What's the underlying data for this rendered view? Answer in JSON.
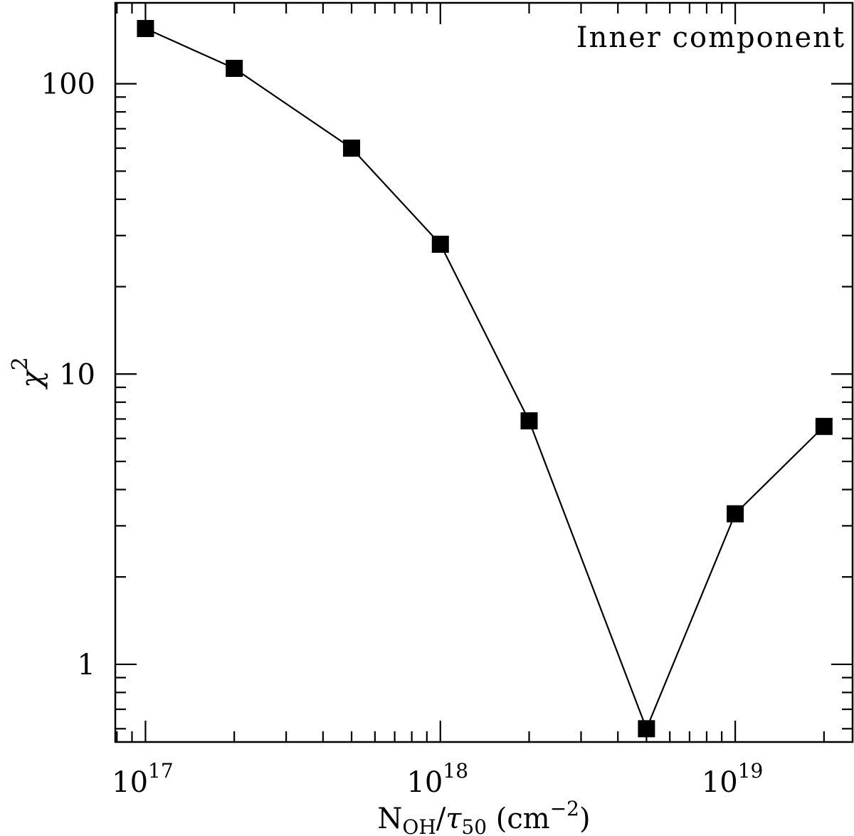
{
  "chart_data": {
    "type": "line",
    "title": "",
    "annotation": "Inner component",
    "xlabel": {
      "parts": [
        "N",
        "OH",
        "/",
        "τ",
        "50",
        " (cm",
        "−2",
        ")"
      ],
      "text": "N_OH/τ_50 (cm^-2)"
    },
    "ylabel": {
      "base": "χ",
      "sup": "2",
      "text": "χ^2"
    },
    "xscale": "log",
    "yscale": "log",
    "xlim": [
      7.9e+16,
      2.5e+19
    ],
    "ylim": [
      0.54,
      190
    ],
    "xticks": [
      {
        "value": 1e+17,
        "base": "10",
        "exp": "17"
      },
      {
        "value": 1e+18,
        "base": "10",
        "exp": "18"
      },
      {
        "value": 1e+19,
        "base": "10",
        "exp": "19"
      }
    ],
    "yticks": [
      {
        "value": 1,
        "label": "1"
      },
      {
        "value": 10,
        "label": "10"
      },
      {
        "value": 100,
        "label": "100"
      }
    ],
    "grid": false,
    "marker": "filled-square",
    "series": [
      {
        "x": [
          1e+17,
          2e+17,
          5e+17,
          1e+18,
          2e+18,
          5e+18,
          1e+19,
          2e+19
        ],
        "y": [
          155,
          113,
          60,
          28,
          6.9,
          0.6,
          3.3,
          6.6
        ]
      }
    ]
  }
}
